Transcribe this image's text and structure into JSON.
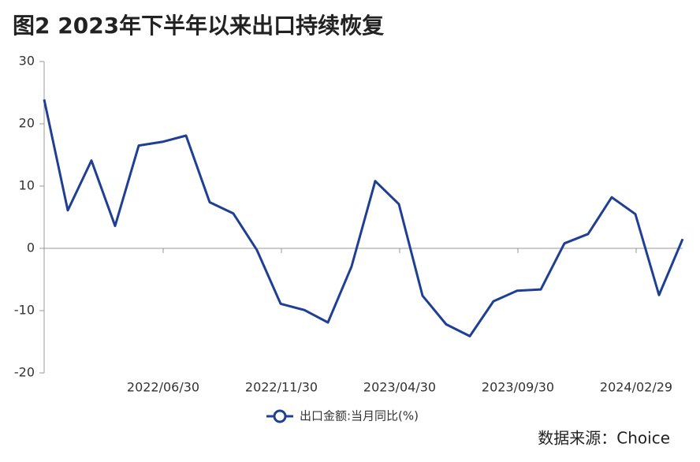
{
  "chart_data": {
    "type": "line",
    "title": "图2  2023年下半年以来出口持续恢复",
    "categories": [
      null,
      null,
      null,
      null,
      null,
      "2022/06/30",
      null,
      null,
      null,
      null,
      "2022/11/30",
      null,
      null,
      null,
      null,
      "2023/04/30",
      null,
      null,
      null,
      null,
      "2023/09/30",
      null,
      null,
      null,
      null,
      "2024/02/29",
      null,
      null
    ],
    "series": [
      {
        "name": "出口金额:当月同比(%)",
        "color": "#1f3f94",
        "values": [
          23.9,
          6.1,
          14.1,
          3.6,
          16.5,
          17.1,
          18.1,
          7.4,
          5.6,
          -0.3,
          -8.9,
          -9.9,
          -11.9,
          -2.9,
          10.8,
          7.1,
          -7.6,
          -12.2,
          -14.1,
          -8.5,
          -6.8,
          -6.6,
          0.8,
          2.3,
          8.2,
          5.5,
          -7.5,
          1.5
        ]
      }
    ],
    "ylim": [
      -20,
      30
    ],
    "yticks": [
      -20,
      -10,
      0,
      10,
      20,
      30
    ],
    "source": "数据来源：Choice"
  }
}
